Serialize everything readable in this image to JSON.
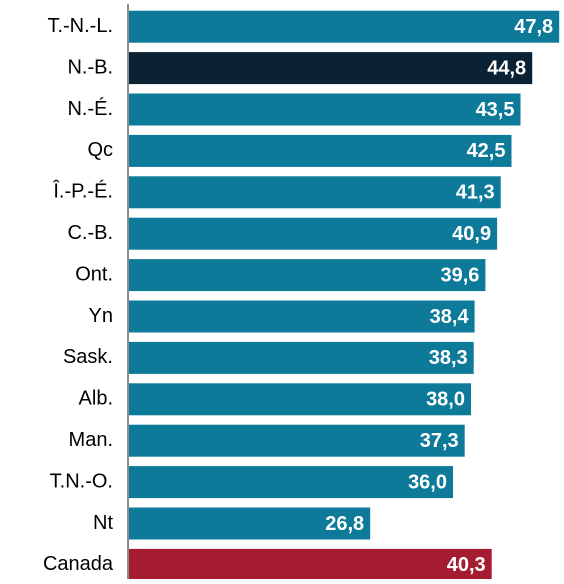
{
  "chart_data": {
    "type": "barh",
    "categories": [
      "T.-N.-L.",
      "N.-B.",
      "N.-É.",
      "Qc",
      "Î.-P.-É.",
      "C.-B.",
      "Ont.",
      "Yn",
      "Sask.",
      "Alb.",
      "Man.",
      "T.N.-O.",
      "Nt",
      "Canada"
    ],
    "values": [
      47.8,
      44.8,
      43.5,
      42.5,
      41.3,
      40.9,
      39.6,
      38.4,
      38.3,
      38.0,
      37.3,
      36.0,
      26.8,
      40.3
    ],
    "value_labels": [
      "47,8",
      "44,8",
      "43,5",
      "42,5",
      "41,3",
      "40,9",
      "39,6",
      "38,4",
      "38,3",
      "38,0",
      "37,3",
      "36,0",
      "26,8",
      "40,3"
    ],
    "colors": [
      "#0e7a99",
      "#0a2233",
      "#0e7a99",
      "#0e7a99",
      "#0e7a99",
      "#0e7a99",
      "#0e7a99",
      "#0e7a99",
      "#0e7a99",
      "#0e7a99",
      "#0e7a99",
      "#0e7a99",
      "#0e7a99",
      "#a51c30"
    ],
    "xlim": [
      0,
      48
    ]
  }
}
